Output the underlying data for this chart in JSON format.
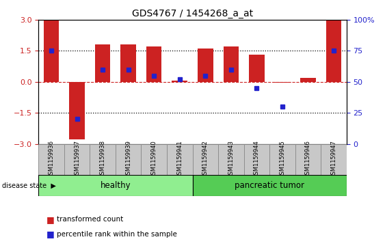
{
  "title": "GDS4767 / 1454268_a_at",
  "samples": [
    "GSM1159936",
    "GSM1159937",
    "GSM1159938",
    "GSM1159939",
    "GSM1159940",
    "GSM1159941",
    "GSM1159942",
    "GSM1159943",
    "GSM1159944",
    "GSM1159945",
    "GSM1159946",
    "GSM1159947"
  ],
  "bar_values": [
    3.0,
    -2.8,
    1.8,
    1.8,
    1.7,
    0.05,
    1.6,
    1.7,
    1.3,
    -0.05,
    0.2,
    3.0
  ],
  "percentile_ranks": [
    75,
    20,
    60,
    60,
    55,
    52,
    55,
    60,
    45,
    30,
    null,
    75
  ],
  "bar_color": "#cc2222",
  "dot_color": "#2222cc",
  "ylim": [
    -3,
    3
  ],
  "yticks": [
    -3,
    -1.5,
    0,
    1.5,
    3
  ],
  "right_yticks": [
    0,
    25,
    50,
    75,
    100
  ],
  "right_ylim": [
    0,
    100
  ],
  "hlines_dotted": [
    1.5,
    -1.5
  ],
  "hline_dashed": 0,
  "healthy_indices": [
    0,
    5
  ],
  "tumor_indices": [
    6,
    11
  ],
  "healthy_label": "healthy",
  "tumor_label": "pancreatic tumor",
  "disease_state_label": "disease state",
  "legend_bar_label": "transformed count",
  "legend_dot_label": "percentile rank within the sample",
  "healthy_color": "#90ee90",
  "tumor_color": "#55cc55",
  "tick_bg_color": "#c8c8c8"
}
